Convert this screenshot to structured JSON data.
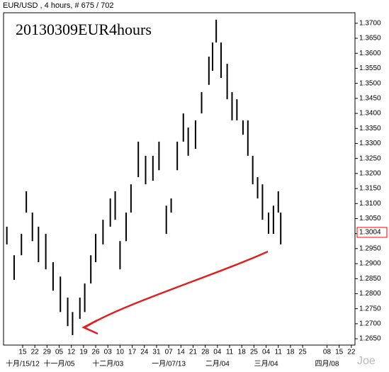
{
  "chart_data": {
    "type": "ohlc",
    "header": "EUR/USD , 4 hours, # 675 / 702",
    "title": "20130309EUR4hours",
    "watermark": "Joe",
    "color": "#000000",
    "x": [
      -1.3,
      -0.7,
      -0.1,
      0.3,
      0.8,
      1.3,
      1.9,
      2.5,
      3.1,
      3.7,
      4.1,
      4.7,
      5.1,
      5.6,
      6.0,
      6.6,
      7.2,
      7.6,
      8.0,
      8.5,
      8.9,
      9.5,
      10.1,
      10.7,
      11.2,
      11.8,
      12.2,
      12.7,
      13.2,
      13.6,
      14.2,
      14.7,
      15.3,
      15.6,
      15.9,
      16.3,
      16.8,
      17.2,
      17.6,
      18.1,
      18.5,
      18.9,
      19.3,
      19.7,
      20.2,
      20.6,
      21.0,
      21.2
    ],
    "series": [
      {
        "name": "High",
        "values": [
          1.3023,
          1.2928,
          1.2999,
          1.3141,
          1.307,
          1.3023,
          1.2999,
          1.2905,
          1.2857,
          1.2787,
          1.2739,
          1.2787,
          1.2834,
          1.2928,
          1.2999,
          1.3046,
          1.3117,
          1.3141,
          1.2975,
          1.307,
          1.3164,
          1.3306,
          1.3259,
          1.3259,
          1.3306,
          1.3093,
          1.3117,
          1.3306,
          1.34,
          1.3353,
          1.3377,
          1.3471,
          1.3589,
          1.3636,
          1.3712,
          1.3636,
          1.3565,
          1.3471,
          1.3447,
          1.3377,
          1.3377,
          1.3259,
          1.3188,
          1.3164,
          1.307,
          1.3093,
          1.3141,
          1.307
        ]
      },
      {
        "name": "Low",
        "values": [
          1.2964,
          1.2846,
          1.2928,
          1.307,
          1.2975,
          1.2905,
          1.2881,
          1.281,
          1.2739,
          1.2692,
          1.2662,
          1.2716,
          1.2739,
          1.2834,
          1.2905,
          1.2964,
          1.3023,
          1.3046,
          1.2881,
          1.2975,
          1.307,
          1.3188,
          1.3164,
          1.3176,
          1.3211,
          1.2999,
          1.307,
          1.3211,
          1.3306,
          1.3259,
          1.3282,
          1.34,
          1.3495,
          1.3542,
          1.3636,
          1.3518,
          1.3447,
          1.3377,
          1.3377,
          1.3329,
          1.3259,
          1.3164,
          1.3117,
          1.3046,
          1.2999,
          1.2999,
          1.307,
          1.2964
        ]
      }
    ],
    "last_price": 1.3004,
    "last_price_color": "#ff0000",
    "xlim": [
      -1.57,
      27.3
    ],
    "ylim": [
      1.2629,
      1.3735
    ],
    "xticks": [
      {
        "value": 0,
        "label": "15"
      },
      {
        "value": 1,
        "label": "22"
      },
      {
        "value": 2,
        "label": "29"
      },
      {
        "value": 3,
        "label": "05"
      },
      {
        "value": 4,
        "label": "12"
      },
      {
        "value": 5,
        "label": "19"
      },
      {
        "value": 6,
        "label": "26"
      },
      {
        "value": 7,
        "label": "03"
      },
      {
        "value": 8,
        "label": "10"
      },
      {
        "value": 9,
        "label": "17"
      },
      {
        "value": 10,
        "label": "24"
      },
      {
        "value": 11,
        "label": "31"
      },
      {
        "value": 12,
        "label": "07"
      },
      {
        "value": 13,
        "label": "14"
      },
      {
        "value": 14,
        "label": "21"
      },
      {
        "value": 15,
        "label": "28"
      },
      {
        "value": 16,
        "label": "04"
      },
      {
        "value": 17,
        "label": "11"
      },
      {
        "value": 18,
        "label": "18"
      },
      {
        "value": 19,
        "label": "25"
      },
      {
        "value": 20,
        "label": "04"
      },
      {
        "value": 21,
        "label": "11"
      },
      {
        "value": 22,
        "label": "18"
      },
      {
        "value": 23,
        "label": "25"
      },
      {
        "value": 25,
        "label": "08"
      },
      {
        "value": 26,
        "label": "15"
      },
      {
        "value": 27,
        "label": "22"
      }
    ],
    "month_ticks": [
      {
        "value": 0,
        "label": "十月/15/12"
      },
      {
        "value": 3,
        "label": "十一月/05"
      },
      {
        "value": 7,
        "label": "十二月/03"
      },
      {
        "value": 12,
        "label": "一月/07/13"
      },
      {
        "value": 16,
        "label": "二月/04"
      },
      {
        "value": 20,
        "label": "三月/04"
      },
      {
        "value": 25,
        "label": "四月/08"
      }
    ],
    "yticks": [
      {
        "value": 1.265,
        "label": "1.2650"
      },
      {
        "value": 1.27,
        "label": "1.2700"
      },
      {
        "value": 1.275,
        "label": "1.2750"
      },
      {
        "value": 1.28,
        "label": "1.2800"
      },
      {
        "value": 1.285,
        "label": "1.2850"
      },
      {
        "value": 1.29,
        "label": "1.2900"
      },
      {
        "value": 1.295,
        "label": "1.2950"
      },
      {
        "value": 1.3,
        "label": "1.3000"
      },
      {
        "value": 1.305,
        "label": "1.3050"
      },
      {
        "value": 1.31,
        "label": "1.3100"
      },
      {
        "value": 1.315,
        "label": "1.3150"
      },
      {
        "value": 1.32,
        "label": "1.3200"
      },
      {
        "value": 1.325,
        "label": "1.3250"
      },
      {
        "value": 1.33,
        "label": "1.3300"
      },
      {
        "value": 1.335,
        "label": "1.3350"
      },
      {
        "value": 1.34,
        "label": "1.3400"
      },
      {
        "value": 1.345,
        "label": "1.3450"
      },
      {
        "value": 1.35,
        "label": "1.3500"
      },
      {
        "value": 1.355,
        "label": "1.3550"
      },
      {
        "value": 1.36,
        "label": "1.3600"
      },
      {
        "value": 1.365,
        "label": "1.3650"
      },
      {
        "value": 1.37,
        "label": "1.3700"
      }
    ]
  }
}
